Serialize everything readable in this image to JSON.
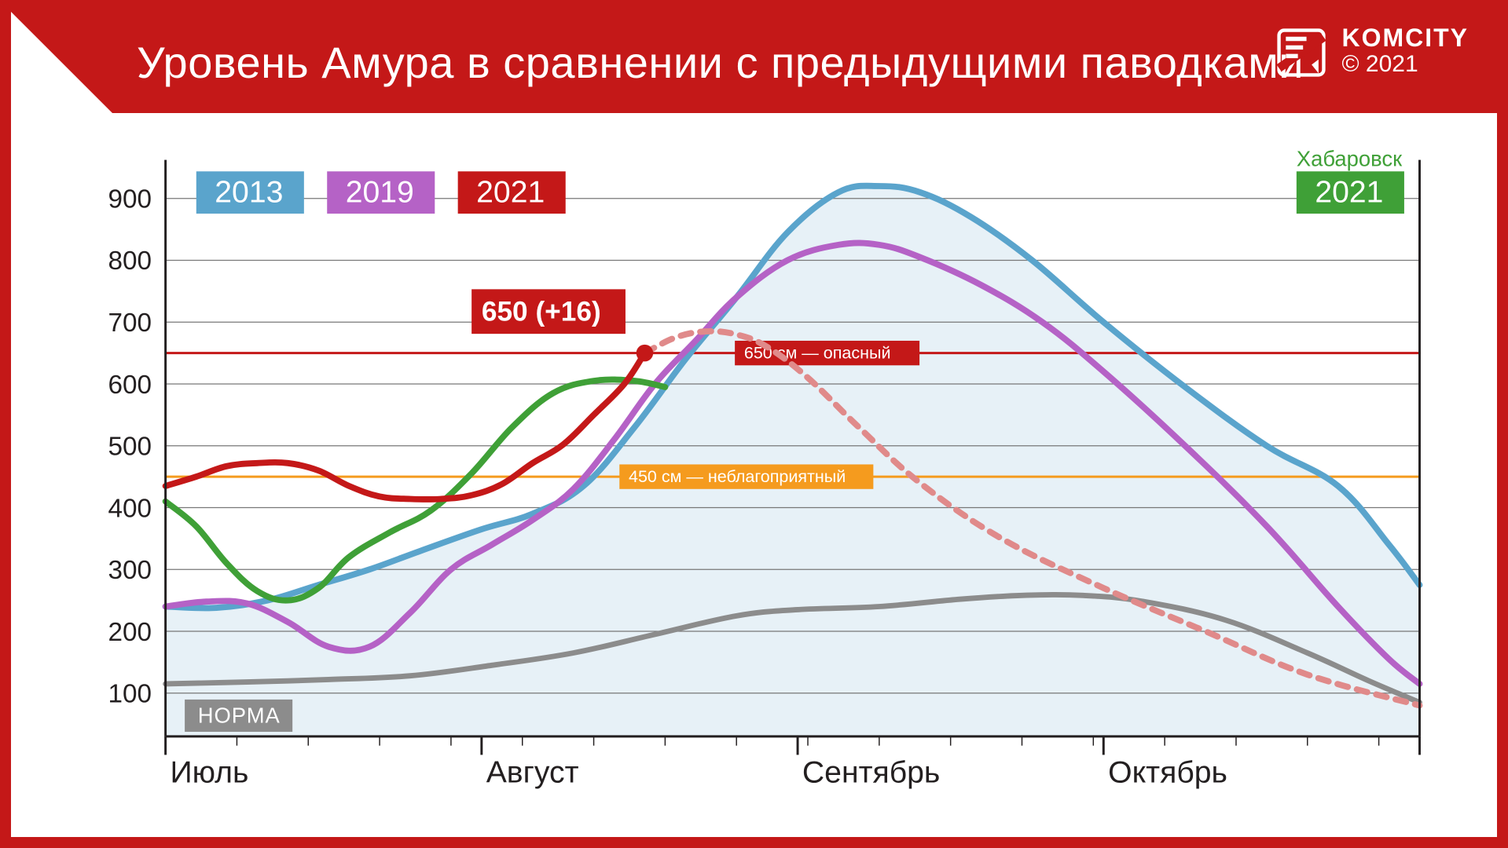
{
  "title": "Уровень Амура в сравнении с предыдущими паводками",
  "brand": {
    "name": "KOMCITY",
    "year": "© 2021"
  },
  "colors": {
    "frame": "#c41818",
    "series_2013": "#5aa4cc",
    "series_2013_fill": "#e7f1f7",
    "series_2019": "#b562c6",
    "series_2021": "#c41818",
    "series_2021_dash": "#e08a8a",
    "series_khab": "#3fa037",
    "norma": "#8c8c8c",
    "ref_danger": "#c41818",
    "ref_warn": "#f59b1e",
    "grid": "#777777",
    "axis": "#231f20"
  },
  "chart": {
    "ymin": 30,
    "ymax": 950,
    "yticks": [
      100,
      200,
      300,
      400,
      500,
      600,
      700,
      800,
      900
    ],
    "x_months": [
      "Июль",
      "Август",
      "Сентябрь",
      "Октябрь"
    ],
    "x_days_total": 123,
    "reference_lines": {
      "danger": {
        "y": 650,
        "label": "650 см — опасный"
      },
      "warn": {
        "y": 450,
        "label": "450 см — неблагоприятный"
      }
    },
    "callout": {
      "x_day": 47,
      "y": 650,
      "text": "650 (+16)"
    },
    "legend": [
      {
        "key": "2013",
        "color": "#5aa4cc"
      },
      {
        "key": "2019",
        "color": "#b562c6"
      },
      {
        "key": "2021",
        "color": "#c41818"
      }
    ],
    "khabarovsk": {
      "label_top": "Хабаровск",
      "label_box": "2021",
      "color": "#3fa037"
    },
    "norma_label": "НОРМА",
    "series": {
      "s2013": [
        [
          0,
          240
        ],
        [
          5,
          238
        ],
        [
          10,
          250
        ],
        [
          15,
          275
        ],
        [
          20,
          300
        ],
        [
          25,
          330
        ],
        [
          31,
          365
        ],
        [
          36,
          390
        ],
        [
          41,
          435
        ],
        [
          46,
          530
        ],
        [
          51,
          640
        ],
        [
          56,
          740
        ],
        [
          61,
          845
        ],
        [
          66,
          910
        ],
        [
          70,
          920
        ],
        [
          74,
          910
        ],
        [
          79,
          870
        ],
        [
          85,
          800
        ],
        [
          92,
          700
        ],
        [
          100,
          595
        ],
        [
          108,
          500
        ],
        [
          115,
          435
        ],
        [
          120,
          340
        ],
        [
          123,
          275
        ]
      ],
      "s2019": [
        [
          0,
          240
        ],
        [
          4,
          248
        ],
        [
          8,
          245
        ],
        [
          12,
          215
        ],
        [
          16,
          175
        ],
        [
          20,
          175
        ],
        [
          24,
          230
        ],
        [
          28,
          300
        ],
        [
          32,
          340
        ],
        [
          36,
          380
        ],
        [
          40,
          430
        ],
        [
          44,
          510
        ],
        [
          48,
          600
        ],
        [
          52,
          670
        ],
        [
          56,
          740
        ],
        [
          61,
          800
        ],
        [
          66,
          825
        ],
        [
          70,
          825
        ],
        [
          74,
          805
        ],
        [
          80,
          760
        ],
        [
          86,
          700
        ],
        [
          92,
          620
        ],
        [
          100,
          500
        ],
        [
          108,
          370
        ],
        [
          115,
          240
        ],
        [
          120,
          155
        ],
        [
          123,
          115
        ]
      ],
      "s2021_solid": [
        [
          0,
          435
        ],
        [
          3,
          450
        ],
        [
          6,
          467
        ],
        [
          9,
          472
        ],
        [
          12,
          472
        ],
        [
          15,
          460
        ],
        [
          18,
          435
        ],
        [
          21,
          418
        ],
        [
          24,
          414
        ],
        [
          27,
          414
        ],
        [
          30,
          420
        ],
        [
          33,
          438
        ],
        [
          36,
          472
        ],
        [
          39,
          502
        ],
        [
          42,
          550
        ],
        [
          45,
          600
        ],
        [
          47,
          650
        ]
      ],
      "s2021_dashed": [
        [
          47,
          650
        ],
        [
          50,
          675
        ],
        [
          53,
          685
        ],
        [
          56,
          680
        ],
        [
          59,
          660
        ],
        [
          63,
          610
        ],
        [
          68,
          530
        ],
        [
          74,
          440
        ],
        [
          82,
          350
        ],
        [
          92,
          270
        ],
        [
          102,
          200
        ],
        [
          112,
          130
        ],
        [
          123,
          80
        ]
      ],
      "khab": [
        [
          0,
          410
        ],
        [
          3,
          370
        ],
        [
          6,
          310
        ],
        [
          9,
          265
        ],
        [
          12,
          250
        ],
        [
          15,
          270
        ],
        [
          18,
          320
        ],
        [
          22,
          360
        ],
        [
          26,
          395
        ],
        [
          30,
          455
        ],
        [
          34,
          530
        ],
        [
          38,
          585
        ],
        [
          42,
          605
        ],
        [
          46,
          605
        ],
        [
          49,
          595
        ]
      ],
      "norma": [
        [
          0,
          115
        ],
        [
          8,
          118
        ],
        [
          16,
          122
        ],
        [
          24,
          128
        ],
        [
          32,
          145
        ],
        [
          40,
          165
        ],
        [
          48,
          195
        ],
        [
          56,
          225
        ],
        [
          62,
          235
        ],
        [
          70,
          240
        ],
        [
          78,
          252
        ],
        [
          84,
          258
        ],
        [
          90,
          258
        ],
        [
          96,
          248
        ],
        [
          104,
          218
        ],
        [
          112,
          165
        ],
        [
          118,
          120
        ],
        [
          123,
          85
        ]
      ]
    },
    "styling": {
      "line_width_main": 8,
      "line_width_norma": 7,
      "line_width_ref": 3,
      "dash_pattern": "14 12",
      "area_opacity": 1,
      "grid_width": 1.2,
      "axis_width": 3
    }
  }
}
